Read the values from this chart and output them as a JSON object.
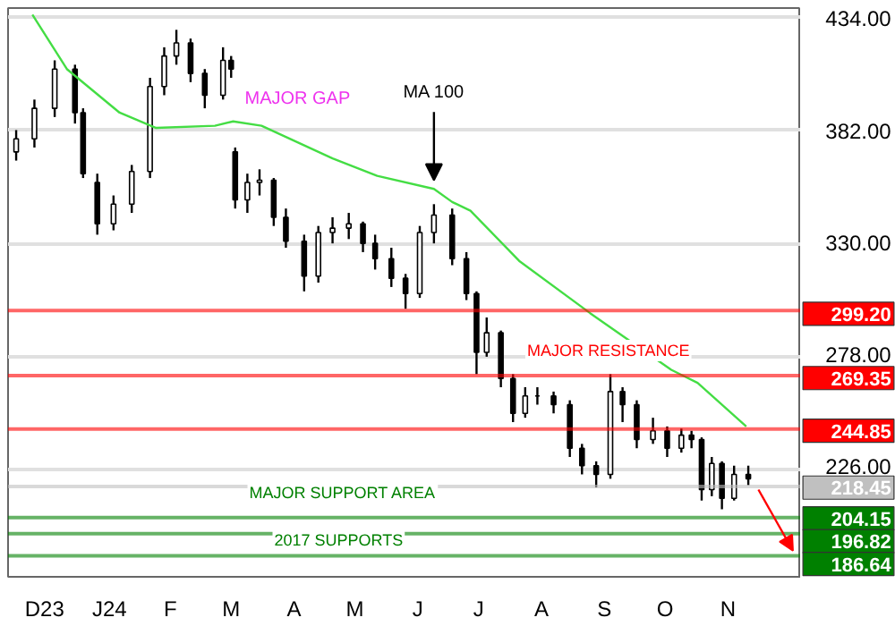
{
  "chart_data": {
    "type": "candlestick",
    "x": [
      "2023-12-01",
      "2023-12-10",
      "2023-12-20",
      "2023-12-30",
      "2024-01-03",
      "2024-01-10",
      "2024-01-18",
      "2024-01-27",
      "2024-02-05",
      "2024-02-12",
      "2024-02-18",
      "2024-02-25",
      "2024-03-03",
      "2024-03-12",
      "2024-03-16",
      "2024-03-18",
      "2024-03-24",
      "2024-03-30",
      "2024-04-06",
      "2024-04-12",
      "2024-04-21",
      "2024-04-28",
      "2024-05-05",
      "2024-05-13",
      "2024-05-20",
      "2024-05-26",
      "2024-06-03",
      "2024-06-10",
      "2024-06-17",
      "2024-06-24",
      "2024-07-03",
      "2024-07-10",
      "2024-07-15",
      "2024-07-20",
      "2024-07-27",
      "2024-08-02",
      "2024-08-08",
      "2024-08-14",
      "2024-08-22",
      "2024-08-30",
      "2024-09-05",
      "2024-09-12",
      "2024-09-19",
      "2024-09-25",
      "2024-10-02",
      "2024-10-10",
      "2024-10-17",
      "2024-10-24",
      "2024-10-29",
      "2024-11-03",
      "2024-11-08",
      "2024-11-13",
      "2024-11-19",
      "2024-11-26"
    ],
    "ohlc": [
      [
        372,
        382,
        368,
        378
      ],
      [
        378,
        396,
        374,
        392
      ],
      [
        392,
        414,
        388,
        410
      ],
      [
        410,
        412,
        385,
        390
      ],
      [
        390,
        392,
        360,
        362
      ],
      [
        358,
        362,
        334,
        339
      ],
      [
        339,
        352,
        336,
        348
      ],
      [
        348,
        366,
        344,
        363
      ],
      [
        363,
        406,
        360,
        402
      ],
      [
        402,
        420,
        398,
        416
      ],
      [
        416,
        428,
        412,
        422
      ],
      [
        422,
        424,
        404,
        408
      ],
      [
        408,
        410,
        392,
        398
      ],
      [
        398,
        420,
        396,
        414
      ],
      [
        414,
        416,
        406,
        410
      ],
      [
        372,
        374,
        346,
        350
      ],
      [
        350,
        362,
        344,
        358
      ],
      [
        358,
        364,
        352,
        359
      ],
      [
        359,
        360,
        338,
        342
      ],
      [
        342,
        346,
        328,
        331
      ],
      [
        331,
        334,
        308,
        315
      ],
      [
        315,
        338,
        312,
        335
      ],
      [
        335,
        342,
        330,
        337
      ],
      [
        337,
        344,
        332,
        339
      ],
      [
        339,
        340,
        326,
        330
      ],
      [
        330,
        334,
        318,
        323
      ],
      [
        323,
        328,
        310,
        314
      ],
      [
        314,
        316,
        300,
        307
      ],
      [
        307,
        338,
        305,
        335
      ],
      [
        335,
        348,
        330,
        343
      ],
      [
        343,
        346,
        320,
        323
      ],
      [
        323,
        326,
        304,
        307
      ],
      [
        307,
        308,
        270,
        280
      ],
      [
        280,
        296,
        278,
        289
      ],
      [
        289,
        290,
        264,
        268
      ],
      [
        268,
        270,
        248,
        252
      ],
      [
        252,
        264,
        250,
        260
      ],
      [
        260,
        264,
        256,
        260
      ],
      [
        260,
        262,
        252,
        256
      ],
      [
        256,
        258,
        232,
        236
      ],
      [
        236,
        238,
        224,
        228
      ],
      [
        228,
        230,
        218,
        224
      ],
      [
        224,
        270,
        222,
        262
      ],
      [
        262,
        264,
        248,
        256
      ],
      [
        256,
        258,
        236,
        240
      ],
      [
        240,
        250,
        238,
        244
      ],
      [
        244,
        246,
        232,
        236
      ],
      [
        236,
        245,
        234,
        242
      ],
      [
        242,
        244,
        236,
        240
      ],
      [
        240,
        241,
        212,
        217
      ],
      [
        217,
        232,
        214,
        229
      ],
      [
        229,
        230,
        208,
        213
      ],
      [
        213,
        228,
        212,
        224
      ],
      [
        224,
        228,
        219,
        222
      ]
    ],
    "color": "#000000",
    "series": [
      {
        "type": "line",
        "color": "#44dd44",
        "x": [
          "2023-12-09",
          "2023-12-26",
          "2024-01-21",
          "2024-02-08",
          "2024-03-08",
          "2024-03-17",
          "2024-03-31",
          "2024-05-05",
          "2024-05-27",
          "2024-06-24",
          "2024-07-03",
          "2024-07-12",
          "2024-08-05",
          "2024-09-09",
          "2024-10-19",
          "2024-11-01",
          "2024-11-25"
        ],
        "values": [
          435,
          410,
          390,
          383,
          384,
          386,
          384,
          369,
          361,
          355,
          349,
          345,
          322,
          298,
          272,
          266,
          246
        ]
      }
    ],
    "xlim": [
      "2023-11-27",
      "2024-12-22"
    ],
    "xticks": [
      {
        "value": "2023-12-15",
        "label": "D23"
      },
      {
        "value": "2024-01-16",
        "label": "J24"
      },
      {
        "value": "2024-02-15",
        "label": "F"
      },
      {
        "value": "2024-03-16",
        "label": "M"
      },
      {
        "value": "2024-04-16",
        "label": "A"
      },
      {
        "value": "2024-05-16",
        "label": "M"
      },
      {
        "value": "2024-06-16",
        "label": "J"
      },
      {
        "value": "2024-07-16",
        "label": "J"
      },
      {
        "value": "2024-08-16",
        "label": "A"
      },
      {
        "value": "2024-09-16",
        "label": "S"
      },
      {
        "value": "2024-10-16",
        "label": "O"
      },
      {
        "value": "2024-11-16",
        "label": "N"
      }
    ],
    "ylim": [
      177,
      438
    ],
    "yticks": [
      {
        "value": 226,
        "label": "226.00"
      },
      {
        "value": 278,
        "label": "278.00"
      },
      {
        "value": 330,
        "label": "330.00"
      },
      {
        "value": 382,
        "label": "382.00"
      },
      {
        "value": 434,
        "label": "434.00"
      }
    ],
    "grid": "y",
    "ref_lines": [
      {
        "axis": "y",
        "value": 299.2,
        "color": "#ff0000",
        "label": "299.20"
      },
      {
        "axis": "y",
        "value": 269.35,
        "color": "#ff0000",
        "label": "269.35"
      },
      {
        "axis": "y",
        "value": 244.85,
        "color": "#ff0000",
        "label": "244.85"
      },
      {
        "axis": "y",
        "value": 218.45,
        "color": "#c0c0c0",
        "label": "218.45"
      },
      {
        "axis": "y",
        "value": 204.15,
        "color": "#008000",
        "label": "204.15"
      },
      {
        "axis": "y",
        "value": 196.82,
        "color": "#008000",
        "label": "196.82"
      },
      {
        "axis": "y",
        "value": 186.64,
        "color": "#008000",
        "label": "186.64"
      }
    ],
    "annotations": [
      {
        "text": "MAJOR RESISTANCE",
        "x": "2024-09-18",
        "y": 269.35
      },
      {
        "text": "MAJOR SUPPORT AREA",
        "x": "2024-05-10",
        "y": 204.15
      },
      {
        "text": "2017 SUPPORTS",
        "x": "2024-05-08",
        "y": 186.64
      },
      "MAJOR GAP",
      {
        "text": "MA 100",
        "x": "2024-06-24",
        "y": 355
      }
    ]
  }
}
